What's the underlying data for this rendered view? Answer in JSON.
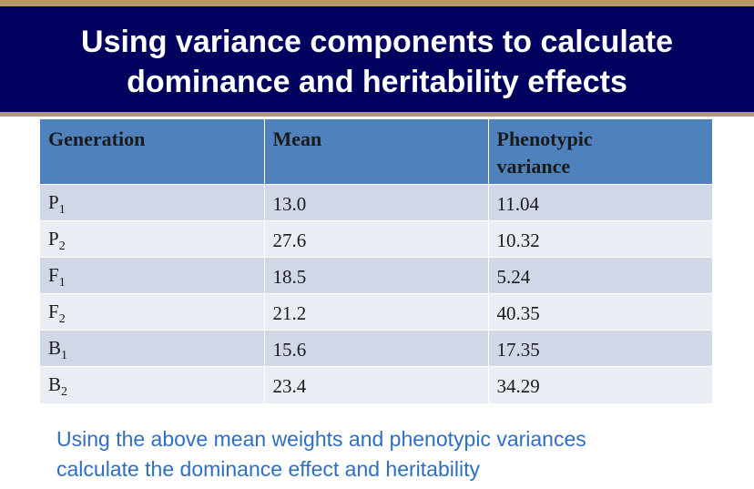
{
  "slide": {
    "title_line1": "Using variance components to calculate",
    "title_line2": "dominance and heritability effects"
  },
  "table": {
    "headers": [
      "Generation",
      "Mean",
      "Phenotypic variance"
    ],
    "rows": [
      {
        "gen_letter": "P",
        "gen_sub": "1",
        "mean": "13.0",
        "variance": "11.04"
      },
      {
        "gen_letter": "P",
        "gen_sub": "2",
        "mean": "27.6",
        "variance": "10.32"
      },
      {
        "gen_letter": "F",
        "gen_sub": "1",
        "mean": "18.5",
        "variance": "5.24"
      },
      {
        "gen_letter": "F",
        "gen_sub": "2",
        "mean": "21.2",
        "variance": "40.35"
      },
      {
        "gen_letter": "B",
        "gen_sub": "1",
        "mean": "15.6",
        "variance": "17.35"
      },
      {
        "gen_letter": "B",
        "gen_sub": "2",
        "mean": "23.4",
        "variance": "34.29"
      }
    ]
  },
  "note": {
    "line1": "Using the above mean weights and phenotypic variances",
    "line2": "calculate the dominance effect and heritability"
  },
  "colors": {
    "title_band": "#00005e",
    "accent_rule": "#b59a66",
    "header_fill": "#4f81bd",
    "row_odd": "#d0d8e8",
    "row_even": "#e9edf4",
    "note_text": "#2e6fc2"
  }
}
